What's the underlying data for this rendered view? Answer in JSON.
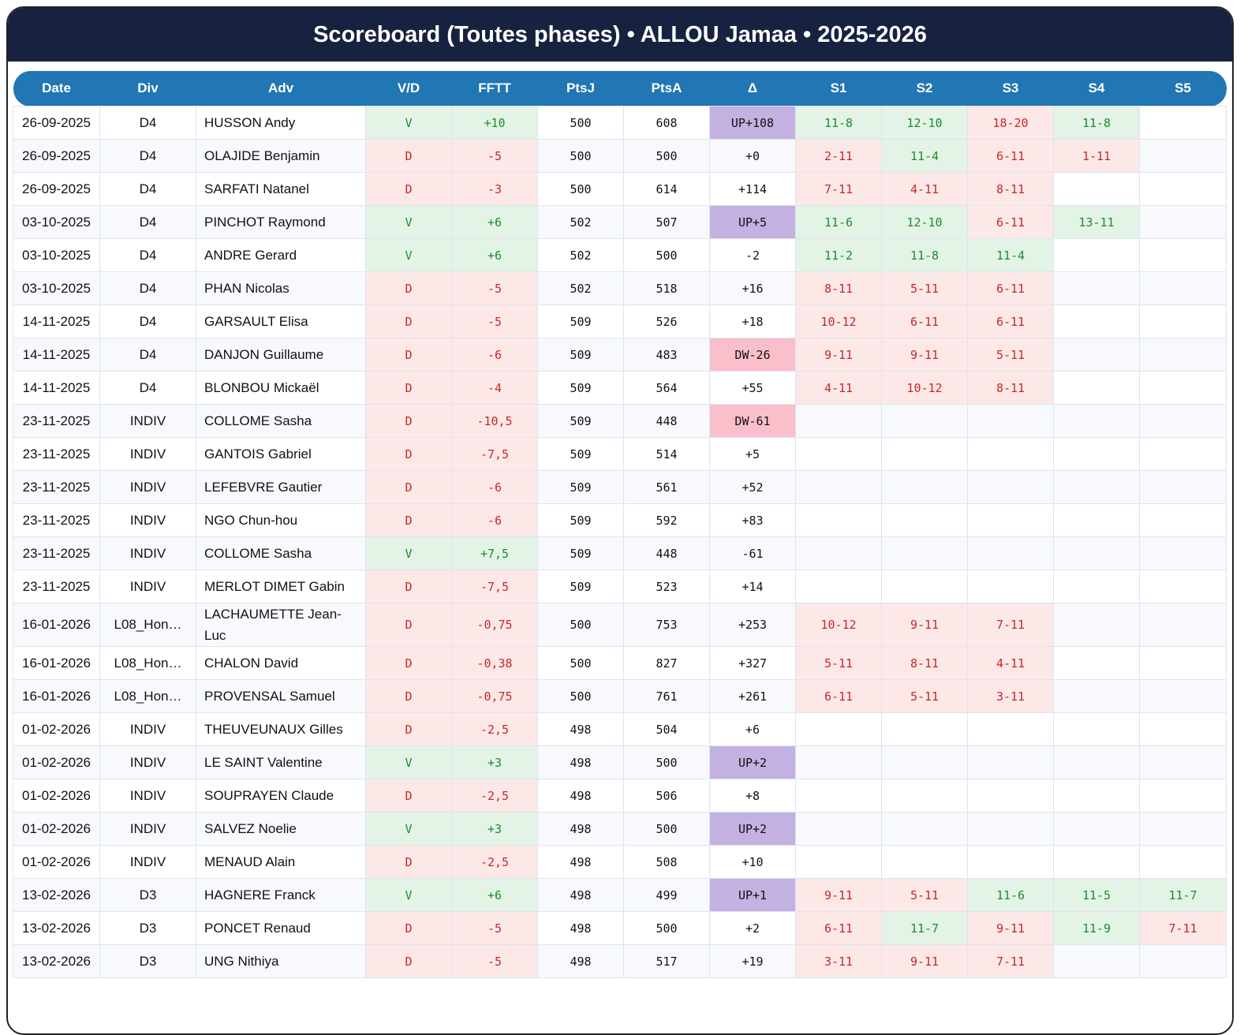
{
  "title": "Scoreboard (Toutes phases) • ALLOU Jamaa • 2025-2026",
  "columns": [
    "Date",
    "Div",
    "Adv",
    "V/D",
    "FFTT",
    "PtsJ",
    "PtsA",
    "Δ",
    "S1",
    "S2",
    "S3",
    "S4",
    "S5"
  ],
  "colors": {
    "header": "#162240",
    "thead": "#2176b4",
    "win_bg": "#e3f4e6",
    "loss_bg": "#fde8e8",
    "up_bg": "#c3b1e1",
    "dw_bg": "#f9c0cb"
  },
  "rows": [
    {
      "date": "26-09-2025",
      "div": "D4",
      "adv": "HUSSON Andy",
      "vd": "V",
      "fftt": "+10",
      "ptsj": "500",
      "ptsa": "608",
      "delta": "UP+108",
      "sets": [
        "11-8",
        "12-10",
        "18-20",
        "11-8",
        ""
      ]
    },
    {
      "date": "26-09-2025",
      "div": "D4",
      "adv": "OLAJIDE Benjamin",
      "vd": "D",
      "fftt": "-5",
      "ptsj": "500",
      "ptsa": "500",
      "delta": "+0",
      "sets": [
        "2-11",
        "11-4",
        "6-11",
        "1-11",
        ""
      ]
    },
    {
      "date": "26-09-2025",
      "div": "D4",
      "adv": "SARFATI Natanel",
      "vd": "D",
      "fftt": "-3",
      "ptsj": "500",
      "ptsa": "614",
      "delta": "+114",
      "sets": [
        "7-11",
        "4-11",
        "8-11",
        "",
        ""
      ]
    },
    {
      "date": "03-10-2025",
      "div": "D4",
      "adv": "PINCHOT Raymond",
      "vd": "V",
      "fftt": "+6",
      "ptsj": "502",
      "ptsa": "507",
      "delta": "UP+5",
      "sets": [
        "11-6",
        "12-10",
        "6-11",
        "13-11",
        ""
      ]
    },
    {
      "date": "03-10-2025",
      "div": "D4",
      "adv": "ANDRE Gerard",
      "vd": "V",
      "fftt": "+6",
      "ptsj": "502",
      "ptsa": "500",
      "delta": "-2",
      "sets": [
        "11-2",
        "11-8",
        "11-4",
        "",
        ""
      ]
    },
    {
      "date": "03-10-2025",
      "div": "D4",
      "adv": "PHAN Nicolas",
      "vd": "D",
      "fftt": "-5",
      "ptsj": "502",
      "ptsa": "518",
      "delta": "+16",
      "sets": [
        "8-11",
        "5-11",
        "6-11",
        "",
        ""
      ]
    },
    {
      "date": "14-11-2025",
      "div": "D4",
      "adv": "GARSAULT Elisa",
      "vd": "D",
      "fftt": "-5",
      "ptsj": "509",
      "ptsa": "526",
      "delta": "+18",
      "sets": [
        "10-12",
        "6-11",
        "6-11",
        "",
        ""
      ]
    },
    {
      "date": "14-11-2025",
      "div": "D4",
      "adv": "DANJON Guillaume",
      "vd": "D",
      "fftt": "-6",
      "ptsj": "509",
      "ptsa": "483",
      "delta": "DW-26",
      "sets": [
        "9-11",
        "9-11",
        "5-11",
        "",
        ""
      ]
    },
    {
      "date": "14-11-2025",
      "div": "D4",
      "adv": "BLONBOU Mickaël",
      "vd": "D",
      "fftt": "-4",
      "ptsj": "509",
      "ptsa": "564",
      "delta": "+55",
      "sets": [
        "4-11",
        "10-12",
        "8-11",
        "",
        ""
      ]
    },
    {
      "date": "23-11-2025",
      "div": "INDIV",
      "adv": "COLLOME Sasha",
      "vd": "D",
      "fftt": "-10,5",
      "ptsj": "509",
      "ptsa": "448",
      "delta": "DW-61",
      "sets": [
        "",
        "",
        "",
        "",
        ""
      ]
    },
    {
      "date": "23-11-2025",
      "div": "INDIV",
      "adv": "GANTOIS Gabriel",
      "vd": "D",
      "fftt": "-7,5",
      "ptsj": "509",
      "ptsa": "514",
      "delta": "+5",
      "sets": [
        "",
        "",
        "",
        "",
        ""
      ]
    },
    {
      "date": "23-11-2025",
      "div": "INDIV",
      "adv": "LEFEBVRE Gautier",
      "vd": "D",
      "fftt": "-6",
      "ptsj": "509",
      "ptsa": "561",
      "delta": "+52",
      "sets": [
        "",
        "",
        "",
        "",
        ""
      ]
    },
    {
      "date": "23-11-2025",
      "div": "INDIV",
      "adv": "NGO Chun-hou",
      "vd": "D",
      "fftt": "-6",
      "ptsj": "509",
      "ptsa": "592",
      "delta": "+83",
      "sets": [
        "",
        "",
        "",
        "",
        ""
      ]
    },
    {
      "date": "23-11-2025",
      "div": "INDIV",
      "adv": "COLLOME Sasha",
      "vd": "V",
      "fftt": "+7,5",
      "ptsj": "509",
      "ptsa": "448",
      "delta": "-61",
      "sets": [
        "",
        "",
        "",
        "",
        ""
      ]
    },
    {
      "date": "23-11-2025",
      "div": "INDIV",
      "adv": "MERLOT DIMET Gabin",
      "vd": "D",
      "fftt": "-7,5",
      "ptsj": "509",
      "ptsa": "523",
      "delta": "+14",
      "sets": [
        "",
        "",
        "",
        "",
        ""
      ]
    },
    {
      "date": "16-01-2026",
      "div": "L08_Hon…",
      "adv": "LACHAUMETTE Jean-Luc",
      "vd": "D",
      "fftt": "-0,75",
      "ptsj": "500",
      "ptsa": "753",
      "delta": "+253",
      "sets": [
        "10-12",
        "9-11",
        "7-11",
        "",
        ""
      ]
    },
    {
      "date": "16-01-2026",
      "div": "L08_Hon…",
      "adv": "CHALON David",
      "vd": "D",
      "fftt": "-0,38",
      "ptsj": "500",
      "ptsa": "827",
      "delta": "+327",
      "sets": [
        "5-11",
        "8-11",
        "4-11",
        "",
        ""
      ]
    },
    {
      "date": "16-01-2026",
      "div": "L08_Hon…",
      "adv": "PROVENSAL Samuel",
      "vd": "D",
      "fftt": "-0,75",
      "ptsj": "500",
      "ptsa": "761",
      "delta": "+261",
      "sets": [
        "6-11",
        "5-11",
        "3-11",
        "",
        ""
      ]
    },
    {
      "date": "01-02-2026",
      "div": "INDIV",
      "adv": "THEUVEUNAUX Gilles",
      "vd": "D",
      "fftt": "-2,5",
      "ptsj": "498",
      "ptsa": "504",
      "delta": "+6",
      "sets": [
        "",
        "",
        "",
        "",
        ""
      ]
    },
    {
      "date": "01-02-2026",
      "div": "INDIV",
      "adv": "LE SAINT Valentine",
      "vd": "V",
      "fftt": "+3",
      "ptsj": "498",
      "ptsa": "500",
      "delta": "UP+2",
      "sets": [
        "",
        "",
        "",
        "",
        ""
      ]
    },
    {
      "date": "01-02-2026",
      "div": "INDIV",
      "adv": "SOUPRAYEN Claude",
      "vd": "D",
      "fftt": "-2,5",
      "ptsj": "498",
      "ptsa": "506",
      "delta": "+8",
      "sets": [
        "",
        "",
        "",
        "",
        ""
      ]
    },
    {
      "date": "01-02-2026",
      "div": "INDIV",
      "adv": "SALVEZ Noelie",
      "vd": "V",
      "fftt": "+3",
      "ptsj": "498",
      "ptsa": "500",
      "delta": "UP+2",
      "sets": [
        "",
        "",
        "",
        "",
        ""
      ]
    },
    {
      "date": "01-02-2026",
      "div": "INDIV",
      "adv": "MENAUD Alain",
      "vd": "D",
      "fftt": "-2,5",
      "ptsj": "498",
      "ptsa": "508",
      "delta": "+10",
      "sets": [
        "",
        "",
        "",
        "",
        ""
      ]
    },
    {
      "date": "13-02-2026",
      "div": "D3",
      "adv": "HAGNERE Franck",
      "vd": "V",
      "fftt": "+6",
      "ptsj": "498",
      "ptsa": "499",
      "delta": "UP+1",
      "sets": [
        "9-11",
        "5-11",
        "11-6",
        "11-5",
        "11-7"
      ]
    },
    {
      "date": "13-02-2026",
      "div": "D3",
      "adv": "PONCET Renaud",
      "vd": "D",
      "fftt": "-5",
      "ptsj": "498",
      "ptsa": "500",
      "delta": "+2",
      "sets": [
        "6-11",
        "11-7",
        "9-11",
        "11-9",
        "7-11"
      ]
    },
    {
      "date": "13-02-2026",
      "div": "D3",
      "adv": "UNG Nithiya",
      "vd": "D",
      "fftt": "-5",
      "ptsj": "498",
      "ptsa": "517",
      "delta": "+19",
      "sets": [
        "3-11",
        "9-11",
        "7-11",
        "",
        ""
      ]
    }
  ]
}
